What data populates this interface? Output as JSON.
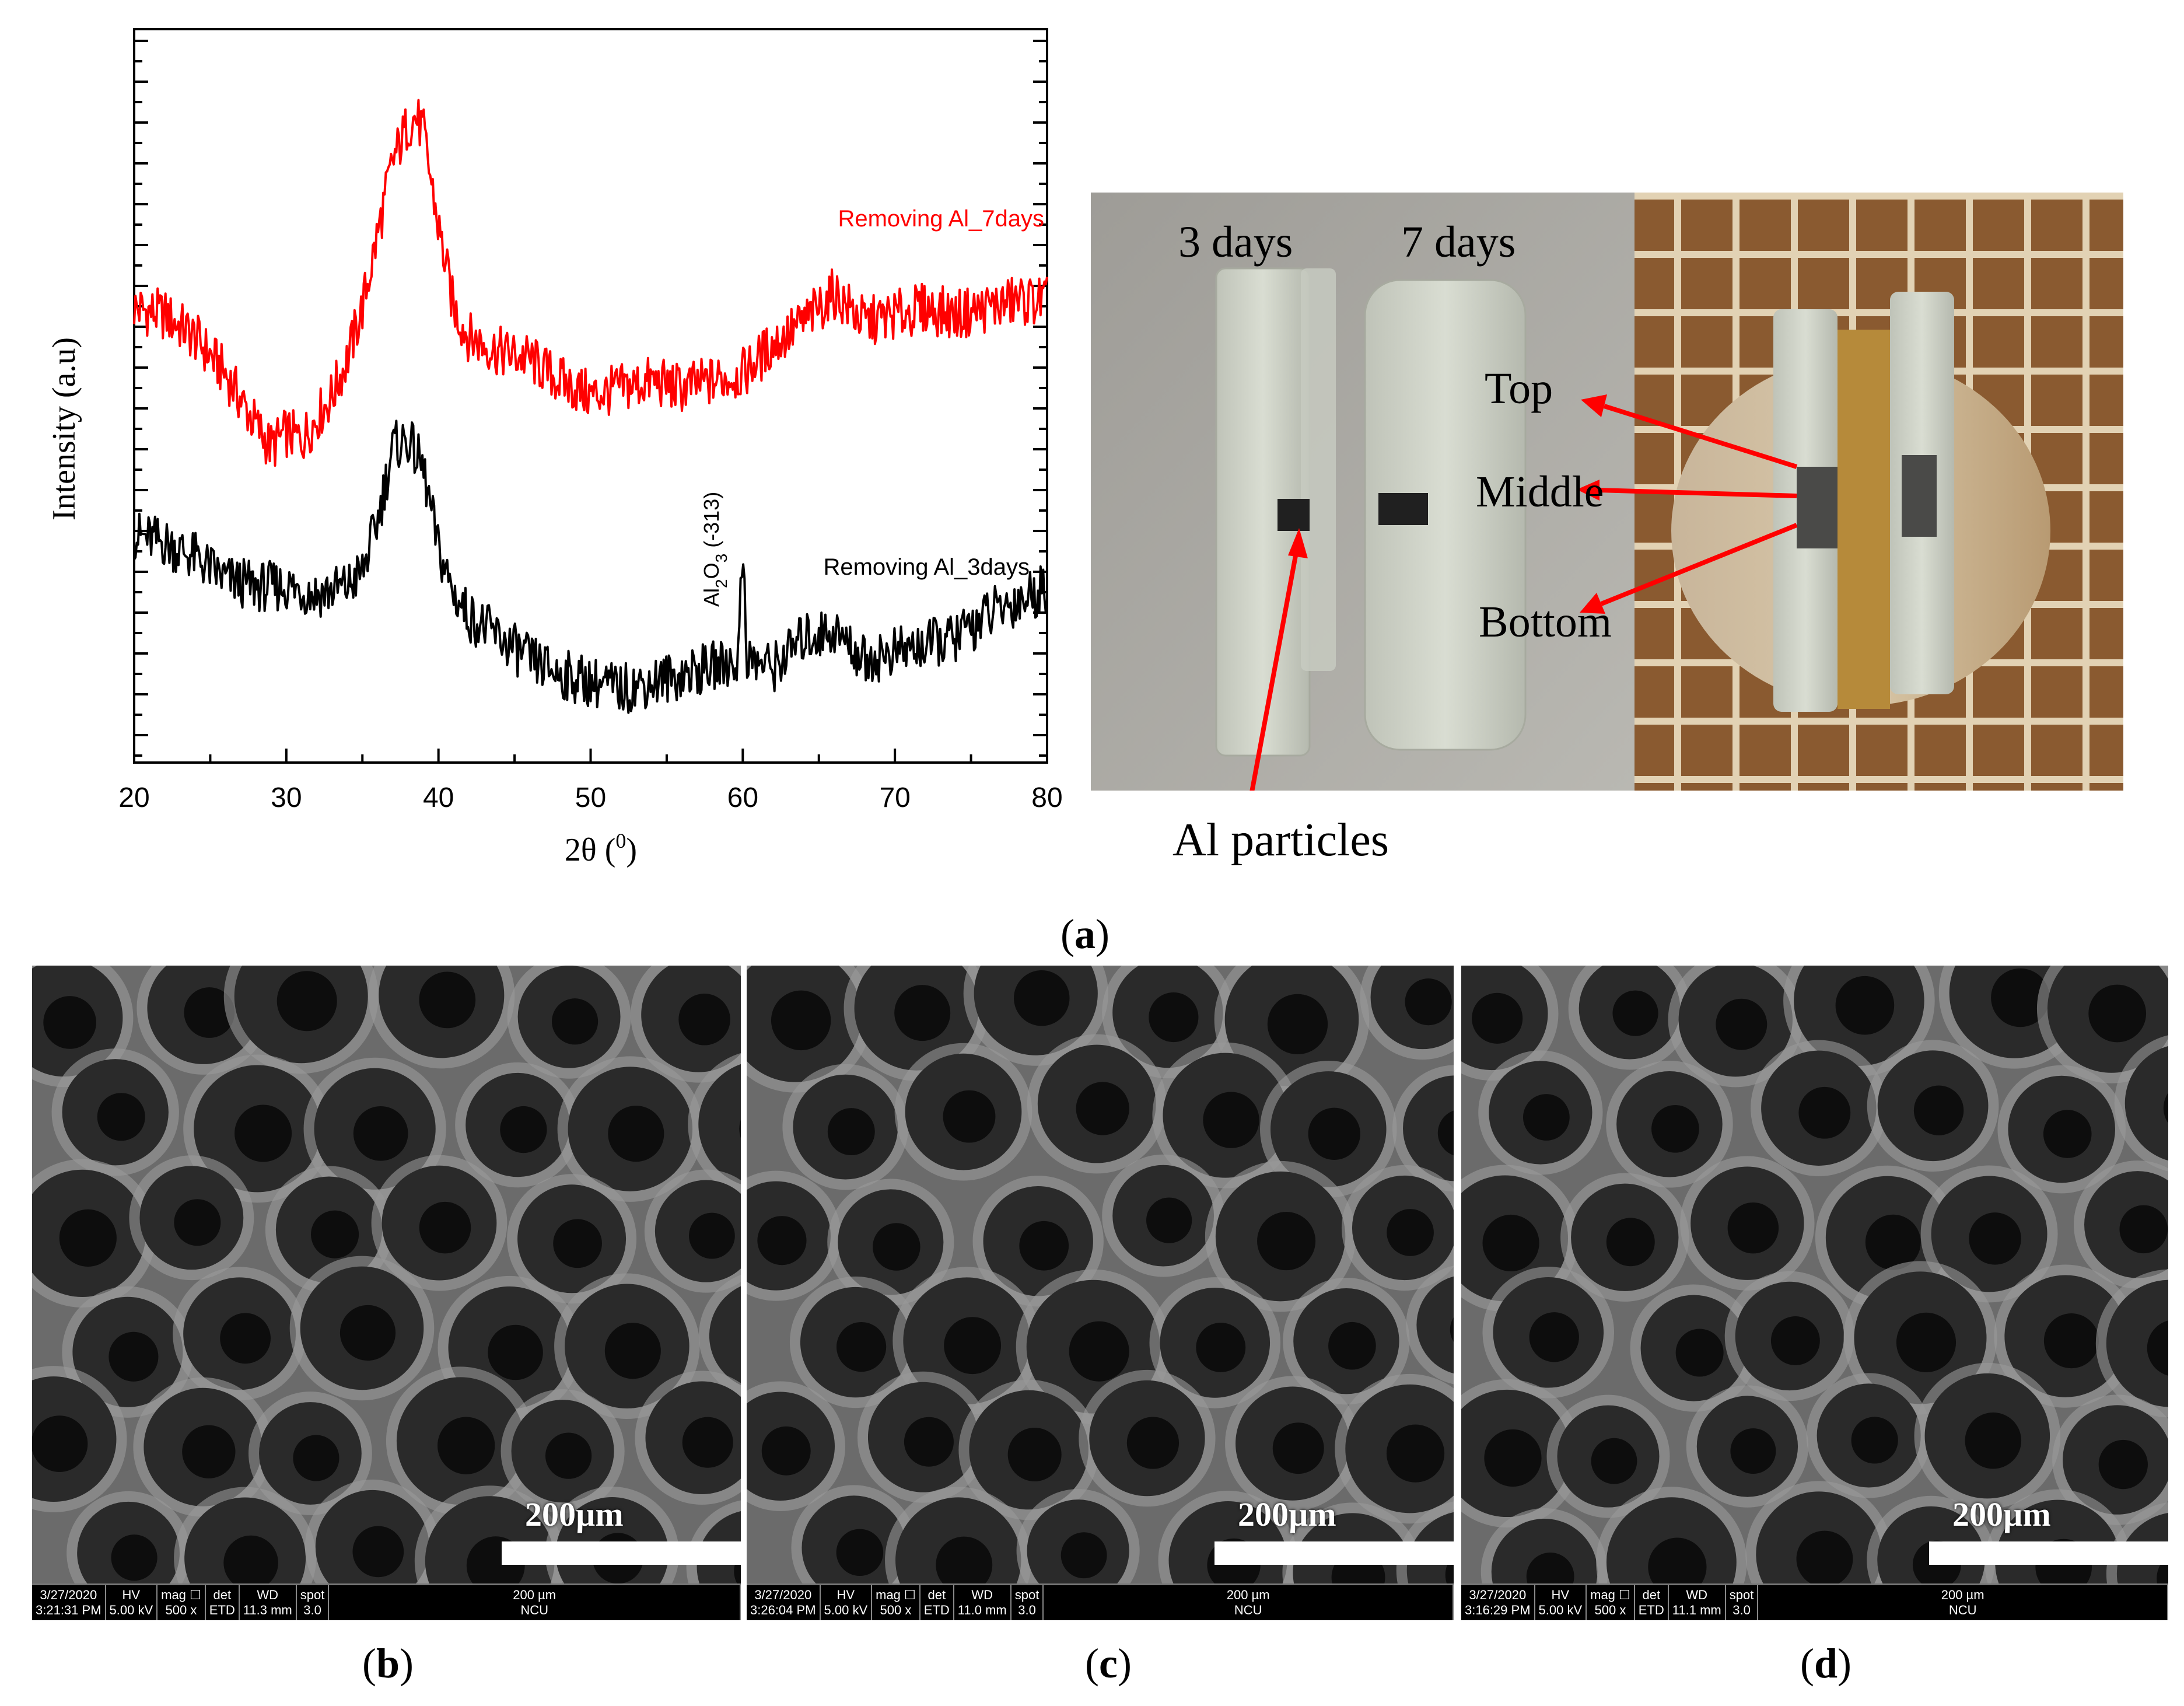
{
  "chart_data": {
    "type": "line",
    "xlabel": "2θ (0)",
    "xlabel_main": "2θ (",
    "xlabel_sup": "0",
    "xlabel_close": ")",
    "ylabel": "Intensity (a.u)",
    "xlim": [
      20,
      80
    ],
    "xticks": [
      "20",
      "30",
      "40",
      "50",
      "60",
      "70",
      "80"
    ],
    "y_tick_labels_shown": false,
    "series": [
      {
        "name": "Removing Al_7days",
        "color": "#ff0000",
        "x": [
          20,
          22,
          24,
          26,
          28,
          29,
          30,
          31,
          32,
          33,
          34,
          35,
          36,
          37,
          38,
          38.5,
          39,
          40,
          41,
          42,
          44,
          46,
          48,
          50,
          52,
          54,
          56,
          58,
          60,
          62,
          64,
          66,
          68,
          70,
          72,
          74,
          76,
          78,
          80
        ],
        "y": [
          0.62,
          0.61,
          0.58,
          0.53,
          0.46,
          0.43,
          0.45,
          0.44,
          0.47,
          0.5,
          0.55,
          0.62,
          0.72,
          0.82,
          0.87,
          0.88,
          0.86,
          0.73,
          0.62,
          0.58,
          0.56,
          0.55,
          0.52,
          0.5,
          0.51,
          0.52,
          0.51,
          0.52,
          0.53,
          0.57,
          0.6,
          0.64,
          0.6,
          0.61,
          0.62,
          0.61,
          0.62,
          0.63,
          0.63
        ]
      },
      {
        "name": "Removing Al_3days",
        "color": "#000000",
        "x": [
          20,
          22,
          24,
          26,
          28,
          30,
          32,
          34,
          35,
          36,
          37,
          38,
          39,
          40,
          41,
          42,
          44,
          46,
          48,
          50,
          52,
          54,
          56,
          58,
          59.7,
          60,
          60.3,
          62,
          64,
          66,
          68,
          70,
          72,
          74,
          76,
          78,
          80
        ],
        "y": [
          0.31,
          0.3,
          0.28,
          0.25,
          0.24,
          0.24,
          0.23,
          0.24,
          0.26,
          0.33,
          0.43,
          0.44,
          0.4,
          0.29,
          0.23,
          0.2,
          0.17,
          0.14,
          0.12,
          0.11,
          0.1,
          0.11,
          0.12,
          0.13,
          0.14,
          0.3,
          0.14,
          0.13,
          0.17,
          0.18,
          0.14,
          0.15,
          0.16,
          0.17,
          0.2,
          0.22,
          0.24
        ]
      }
    ],
    "annotation": {
      "main": "Al",
      "sub1": "2",
      "mid": "O",
      "sub2": "3",
      "tail": " (-313)",
      "x": 60
    }
  },
  "photo": {
    "labels": {
      "three_days": "3 days",
      "seven_days": "7 days",
      "top": "Top",
      "middle": "Middle",
      "bottom": "Bottom",
      "al_particles": "Al particles"
    }
  },
  "captions": {
    "a": "a",
    "b": "b",
    "c": "c",
    "d": "d"
  },
  "sem": [
    {
      "scale": "200µm",
      "bar_text": "200 µm",
      "date": "3/27/2020",
      "time": "3:21:31 PM",
      "hv": "5.00 kV",
      "mag": "500 x",
      "det": "ETD",
      "wd": "11.3 mm",
      "spot": "3.0",
      "org": "NCU"
    },
    {
      "scale": "200µm",
      "bar_text": "200 µm",
      "date": "3/27/2020",
      "time": "3:26:04 PM",
      "hv": "5.00 kV",
      "mag": "500 x",
      "det": "ETD",
      "wd": "11.0 mm",
      "spot": "3.0",
      "org": "NCU"
    },
    {
      "scale": "200µm",
      "bar_text": "200 µm",
      "date": "3/27/2020",
      "time": "3:16:29 PM",
      "hv": "5.00 kV",
      "mag": "500 x",
      "det": "ETD",
      "wd": "11.1 mm",
      "spot": "3.0",
      "org": "NCU"
    }
  ],
  "sem_header": {
    "hv": "HV",
    "mag": "mag ☐",
    "det": "det",
    "wd": "WD",
    "spot": "spot"
  }
}
